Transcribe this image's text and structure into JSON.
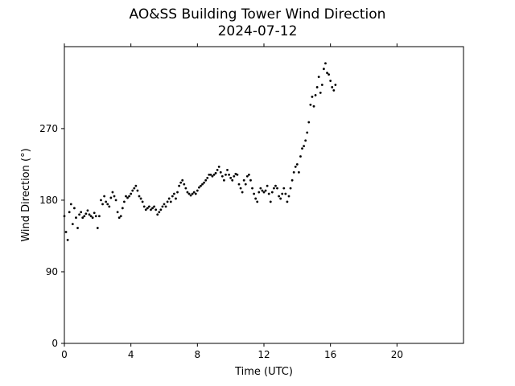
{
  "title_line_1": "AO&SS Building Tower Wind Direction",
  "title_line_2": "2024-07-12",
  "chart_data": {
    "type": "scatter",
    "title": "AO&SS Building Tower Wind Direction\n2024-07-12",
    "xlabel": "Time (UTC)",
    "ylabel": "Wind Direction (°)",
    "xlim": [
      0,
      24
    ],
    "ylim": [
      0,
      373
    ],
    "xticks": [
      0,
      4,
      8,
      12,
      16,
      20
    ],
    "xtick_labels": [
      "0",
      "4",
      "8",
      "12",
      "16",
      "20"
    ],
    "yticks": [
      0,
      90,
      180,
      270
    ],
    "ytick_labels": [
      "0",
      "90",
      "180",
      "270"
    ],
    "grid": false,
    "legend": "none",
    "marker_color": "#000000",
    "series": [
      {
        "points": [
          [
            0.0,
            160
          ],
          [
            0.1,
            140
          ],
          [
            0.2,
            130
          ],
          [
            0.3,
            165
          ],
          [
            0.4,
            175
          ],
          [
            0.5,
            150
          ],
          [
            0.6,
            170
          ],
          [
            0.7,
            158
          ],
          [
            0.8,
            145
          ],
          [
            0.9,
            162
          ],
          [
            1.0,
            165
          ],
          [
            1.1,
            158
          ],
          [
            1.2,
            160
          ],
          [
            1.3,
            163
          ],
          [
            1.4,
            167
          ],
          [
            1.5,
            162
          ],
          [
            1.6,
            160
          ],
          [
            1.7,
            158
          ],
          [
            1.8,
            164
          ],
          [
            1.9,
            160
          ],
          [
            2.0,
            145
          ],
          [
            2.1,
            160
          ],
          [
            2.2,
            180
          ],
          [
            2.3,
            175
          ],
          [
            2.4,
            185
          ],
          [
            2.5,
            178
          ],
          [
            2.6,
            175
          ],
          [
            2.7,
            172
          ],
          [
            2.8,
            183
          ],
          [
            2.9,
            190
          ],
          [
            3.0,
            185
          ],
          [
            3.1,
            180
          ],
          [
            3.2,
            165
          ],
          [
            3.3,
            158
          ],
          [
            3.4,
            160
          ],
          [
            3.5,
            170
          ],
          [
            3.6,
            178
          ],
          [
            3.7,
            185
          ],
          [
            3.8,
            183
          ],
          [
            3.9,
            185
          ],
          [
            4.0,
            188
          ],
          [
            4.1,
            192
          ],
          [
            4.2,
            195
          ],
          [
            4.3,
            198
          ],
          [
            4.4,
            192
          ],
          [
            4.5,
            185
          ],
          [
            4.6,
            182
          ],
          [
            4.7,
            178
          ],
          [
            4.8,
            172
          ],
          [
            4.9,
            168
          ],
          [
            5.0,
            170
          ],
          [
            5.1,
            172
          ],
          [
            5.2,
            168
          ],
          [
            5.3,
            170
          ],
          [
            5.4,
            172
          ],
          [
            5.5,
            168
          ],
          [
            5.6,
            162
          ],
          [
            5.7,
            165
          ],
          [
            5.8,
            168
          ],
          [
            5.9,
            172
          ],
          [
            6.0,
            175
          ],
          [
            6.1,
            172
          ],
          [
            6.2,
            178
          ],
          [
            6.3,
            182
          ],
          [
            6.4,
            178
          ],
          [
            6.5,
            185
          ],
          [
            6.6,
            188
          ],
          [
            6.7,
            182
          ],
          [
            6.8,
            190
          ],
          [
            6.9,
            198
          ],
          [
            7.0,
            202
          ],
          [
            7.1,
            205
          ],
          [
            7.2,
            200
          ],
          [
            7.3,
            195
          ],
          [
            7.4,
            190
          ],
          [
            7.5,
            188
          ],
          [
            7.6,
            186
          ],
          [
            7.7,
            188
          ],
          [
            7.8,
            190
          ],
          [
            7.9,
            188
          ],
          [
            8.0,
            192
          ],
          [
            8.1,
            196
          ],
          [
            8.2,
            198
          ],
          [
            8.3,
            200
          ],
          [
            8.4,
            202
          ],
          [
            8.5,
            205
          ],
          [
            8.6,
            208
          ],
          [
            8.7,
            212
          ],
          [
            8.8,
            212
          ],
          [
            8.9,
            210
          ],
          [
            9.0,
            212
          ],
          [
            9.1,
            214
          ],
          [
            9.2,
            218
          ],
          [
            9.3,
            222
          ],
          [
            9.4,
            215
          ],
          [
            9.5,
            210
          ],
          [
            9.6,
            205
          ],
          [
            9.7,
            212
          ],
          [
            9.8,
            218
          ],
          [
            9.9,
            212
          ],
          [
            10.0,
            208
          ],
          [
            10.1,
            205
          ],
          [
            10.2,
            210
          ],
          [
            10.3,
            213
          ],
          [
            10.4,
            212
          ],
          [
            10.5,
            200
          ],
          [
            10.6,
            195
          ],
          [
            10.7,
            190
          ],
          [
            10.8,
            205
          ],
          [
            10.9,
            200
          ],
          [
            11.0,
            210
          ],
          [
            11.1,
            212
          ],
          [
            11.2,
            205
          ],
          [
            11.3,
            195
          ],
          [
            11.4,
            188
          ],
          [
            11.5,
            182
          ],
          [
            11.6,
            178
          ],
          [
            11.7,
            190
          ],
          [
            11.8,
            195
          ],
          [
            11.9,
            192
          ],
          [
            12.0,
            190
          ],
          [
            12.1,
            192
          ],
          [
            12.2,
            198
          ],
          [
            12.3,
            188
          ],
          [
            12.4,
            178
          ],
          [
            12.5,
            190
          ],
          [
            12.6,
            195
          ],
          [
            12.7,
            198
          ],
          [
            12.8,
            195
          ],
          [
            12.9,
            185
          ],
          [
            13.0,
            182
          ],
          [
            13.1,
            188
          ],
          [
            13.2,
            195
          ],
          [
            13.3,
            188
          ],
          [
            13.4,
            178
          ],
          [
            13.5,
            185
          ],
          [
            13.6,
            195
          ],
          [
            13.7,
            205
          ],
          [
            13.8,
            215
          ],
          [
            13.9,
            222
          ],
          [
            14.0,
            225
          ],
          [
            14.1,
            215
          ],
          [
            14.2,
            235
          ],
          [
            14.3,
            245
          ],
          [
            14.4,
            248
          ],
          [
            14.5,
            255
          ],
          [
            14.6,
            265
          ],
          [
            14.7,
            278
          ],
          [
            14.8,
            300
          ],
          [
            14.9,
            310
          ],
          [
            15.0,
            298
          ],
          [
            15.1,
            312
          ],
          [
            15.2,
            322
          ],
          [
            15.3,
            335
          ],
          [
            15.4,
            315
          ],
          [
            15.5,
            325
          ],
          [
            15.6,
            345
          ],
          [
            15.7,
            352
          ],
          [
            15.8,
            340
          ],
          [
            15.9,
            338
          ],
          [
            16.0,
            330
          ],
          [
            16.1,
            322
          ],
          [
            16.2,
            318
          ],
          [
            16.3,
            325
          ]
        ]
      }
    ]
  }
}
